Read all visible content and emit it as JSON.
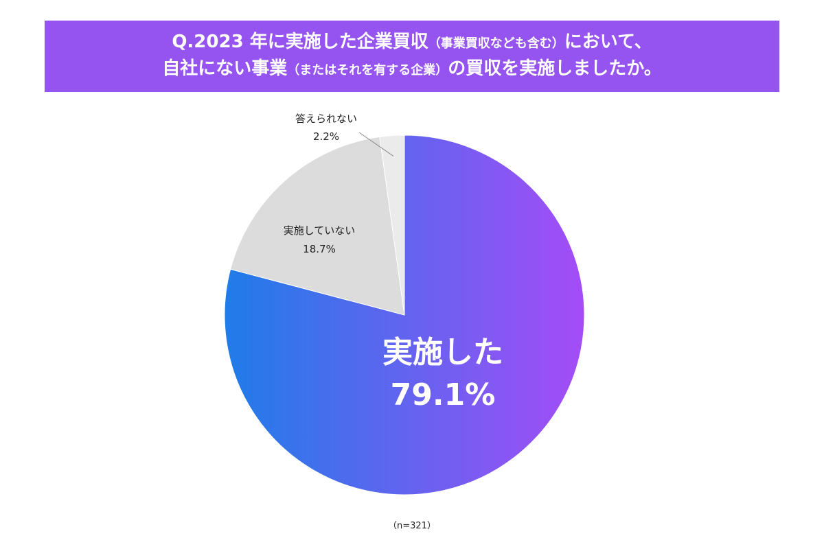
{
  "title": {
    "line1_main": "Q.2023 年に実施した企業買収",
    "line1_note": "（事業買収なども含む）",
    "line1_tail": "において、",
    "line2_main": "自社にない事業",
    "line2_note": "（またはそれを有する企業）",
    "line2_tail": "の買収を実施しましたか。"
  },
  "note": "（n=321）",
  "colors": {
    "banner": "#9553ef",
    "main_gradient_start": "#1f7ce8",
    "main_gradient_end": "#a54cf7",
    "not_done": "#dcdcdc",
    "cannot_answer": "#ebebeb"
  },
  "chart_data": {
    "type": "pie",
    "slices": [
      {
        "label": "実施した",
        "value": 79.1,
        "value_label": "79.1%"
      },
      {
        "label": "実施していない",
        "value": 18.7,
        "value_label": "18.7%"
      },
      {
        "label": "答えられない",
        "value": 2.2,
        "value_label": "2.2%"
      }
    ],
    "legend": "none"
  }
}
